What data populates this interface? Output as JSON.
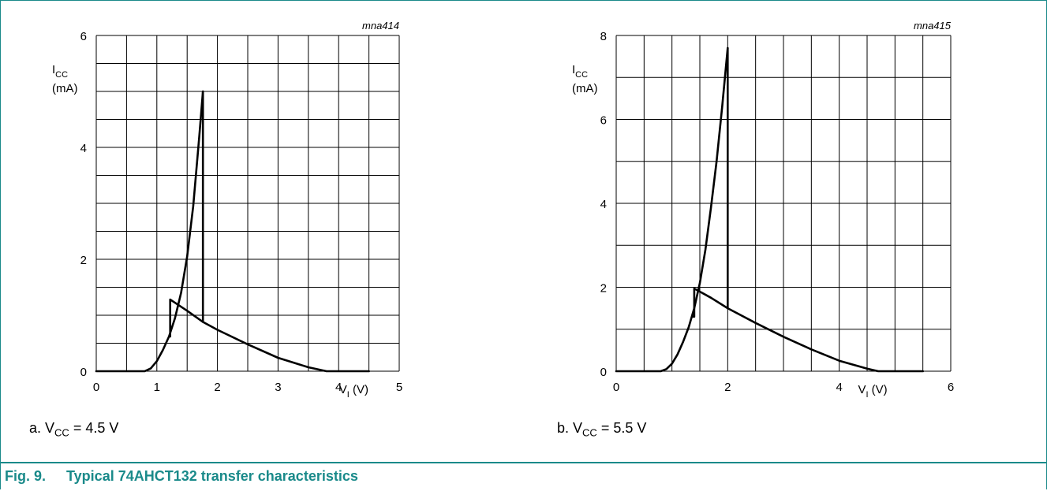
{
  "figure": {
    "number": "Fig. 9.",
    "title": "Typical 74AHCT132 transfer characteristics",
    "frame_color": "#1a8a8a"
  },
  "chart_data": [
    {
      "type": "line",
      "id": "mna414",
      "code": "mna414",
      "subcaption": {
        "prefix": "a. V",
        "sub": "CC",
        "suffix": " = 4.5 V"
      },
      "ylabel": {
        "main": "I",
        "sub": "CC",
        "unit": "(mA)"
      },
      "xlabel": {
        "main": "V",
        "sub": "I",
        "unit": " (V)"
      },
      "xlim": [
        0,
        5
      ],
      "ylim": [
        0,
        6
      ],
      "x_ticks": [
        "0",
        "1",
        "2",
        "3",
        "4",
        "5"
      ],
      "y_ticks": [
        "0",
        "2",
        "4",
        "6"
      ],
      "x_grid_step": 0.5,
      "y_grid_step": 0.5,
      "grid": true,
      "series": [
        {
          "values_x": [
            0,
            0.8,
            0.9,
            1.0,
            1.1,
            1.2,
            1.3,
            1.4,
            1.5,
            1.6,
            1.7,
            1.76
          ],
          "values_y": [
            0,
            0,
            0.05,
            0.18,
            0.38,
            0.62,
            0.95,
            1.4,
            2.05,
            2.95,
            4.2,
            5.0
          ]
        },
        {
          "values_x": [
            1.76,
            1.76,
            2.0,
            2.5,
            3.0,
            3.5,
            3.8,
            4.0,
            4.5
          ],
          "values_y": [
            5.0,
            0.88,
            0.74,
            0.48,
            0.24,
            0.07,
            0.0,
            0.0,
            0.0
          ]
        },
        {
          "values_x": [
            1.2,
            1.22,
            1.22,
            1.5,
            1.76
          ],
          "values_y": [
            0.62,
            0.62,
            1.28,
            1.08,
            0.88
          ]
        }
      ]
    },
    {
      "type": "line",
      "id": "mna415",
      "code": "mna415",
      "subcaption": {
        "prefix": "b. V",
        "sub": "CC",
        "suffix": " = 5.5 V"
      },
      "ylabel": {
        "main": "I",
        "sub": "CC",
        "unit": "(mA)"
      },
      "xlabel": {
        "main": "V",
        "sub": "I",
        "unit": " (V)"
      },
      "xlim": [
        0,
        6
      ],
      "ylim": [
        0,
        8
      ],
      "x_ticks": [
        "0",
        "2",
        "4",
        "6"
      ],
      "y_ticks": [
        "0",
        "2",
        "4",
        "6",
        "8"
      ],
      "x_grid_step": 0.5,
      "y_grid_step": 1,
      "grid": true,
      "series": [
        {
          "values_x": [
            0,
            0.8,
            0.9,
            1.0,
            1.1,
            1.2,
            1.3,
            1.4,
            1.5,
            1.6,
            1.7,
            1.8,
            1.9,
            2.0
          ],
          "values_y": [
            0,
            0,
            0.05,
            0.18,
            0.4,
            0.7,
            1.05,
            1.5,
            2.1,
            2.9,
            3.9,
            5.0,
            6.3,
            7.7
          ]
        },
        {
          "values_x": [
            2.0,
            2.0,
            2.5,
            3.0,
            3.5,
            4.0,
            4.5,
            4.7,
            5.0,
            5.5
          ],
          "values_y": [
            7.7,
            1.5,
            1.15,
            0.82,
            0.52,
            0.25,
            0.06,
            0.0,
            0.0,
            0.0
          ]
        },
        {
          "values_x": [
            1.38,
            1.4,
            1.4,
            1.7,
            2.0
          ],
          "values_y": [
            1.3,
            1.3,
            1.97,
            1.75,
            1.5
          ]
        }
      ]
    }
  ]
}
